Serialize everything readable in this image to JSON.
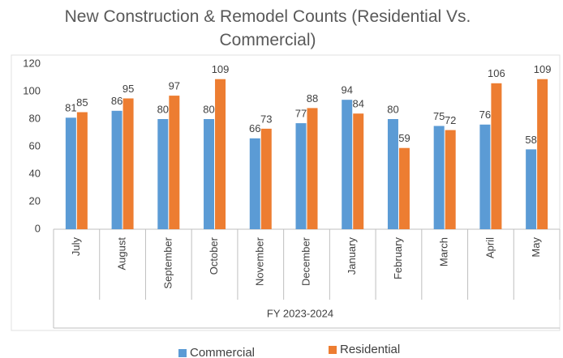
{
  "chart_data": {
    "type": "bar",
    "title": "New Construction & Remodel Counts (Residential Vs. Commercial)",
    "x_label": "FY 2023-2024",
    "categories": [
      "July",
      "August",
      "September",
      "October",
      "November",
      "December",
      "January",
      "February",
      "March",
      "April",
      "May"
    ],
    "series": [
      {
        "name": "Commercial",
        "color": "#5b9bd5",
        "values": [
          81,
          86,
          80,
          80,
          66,
          77,
          94,
          80,
          75,
          76,
          58
        ]
      },
      {
        "name": "Residential",
        "color": "#ed7d31",
        "values": [
          85,
          95,
          97,
          109,
          73,
          88,
          84,
          59,
          72,
          106,
          109
        ]
      }
    ],
    "ylim": [
      0,
      120
    ],
    "yticks": [
      0,
      20,
      40,
      60,
      80,
      100,
      120
    ],
    "grid": false,
    "legend": "bottom"
  }
}
